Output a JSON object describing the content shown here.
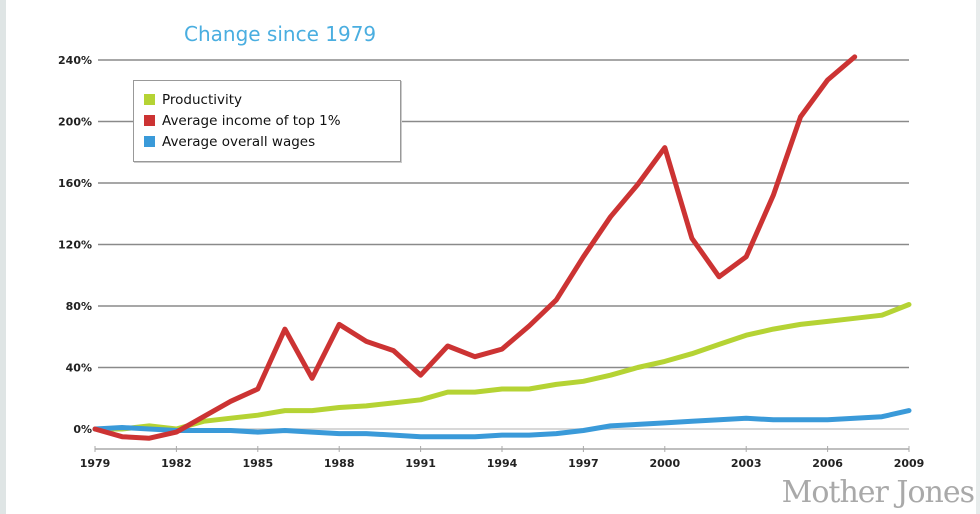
{
  "chart_data": {
    "type": "line",
    "title": "Change since 1979",
    "xlabel": "",
    "ylabel": "",
    "x": [
      1979,
      1980,
      1981,
      1982,
      1983,
      1984,
      1985,
      1986,
      1987,
      1988,
      1989,
      1990,
      1991,
      1992,
      1993,
      1994,
      1995,
      1996,
      1997,
      1998,
      1999,
      2000,
      2001,
      2002,
      2003,
      2004,
      2005,
      2006,
      2007,
      2008,
      2009
    ],
    "xticks": [
      "1979",
      "1982",
      "1985",
      "1988",
      "1991",
      "1994",
      "1997",
      "2000",
      "2003",
      "2006",
      "2009"
    ],
    "yticks": [
      "0%",
      "40%",
      "80%",
      "120%",
      "160%",
      "200%",
      "240%"
    ],
    "ylim": [
      0,
      240
    ],
    "grid": true,
    "legend_position": "top-left",
    "series": [
      {
        "name": "Productivity",
        "color": "#b5d334",
        "values": [
          0,
          0,
          2,
          0,
          5,
          7,
          9,
          12,
          12,
          14,
          15,
          17,
          19,
          24,
          24,
          26,
          26,
          29,
          31,
          35,
          40,
          44,
          49,
          55,
          61,
          65,
          68,
          70,
          72,
          74,
          81
        ]
      },
      {
        "name": "Average income of top 1%",
        "color": "#cc3333",
        "values": [
          0,
          -5,
          -6,
          -2,
          8,
          18,
          26,
          65,
          33,
          68,
          57,
          51,
          35,
          54,
          47,
          52,
          67,
          84,
          112,
          138,
          159,
          183,
          124,
          99,
          112,
          152,
          203,
          227,
          242,
          null,
          null
        ]
      },
      {
        "name": "Average overall wages",
        "color": "#3a9ad9",
        "values": [
          0,
          1,
          0,
          -1,
          -1,
          -1,
          -2,
          -1,
          -2,
          -3,
          -3,
          -4,
          -5,
          -5,
          -5,
          -4,
          -4,
          -3,
          -1,
          2,
          3,
          4,
          5,
          6,
          7,
          6,
          6,
          6,
          7,
          8,
          12
        ]
      }
    ]
  },
  "watermark": "Mother Jones"
}
